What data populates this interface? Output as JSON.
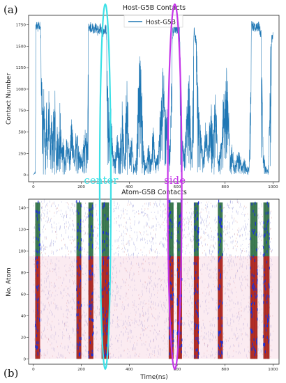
{
  "panel_labels": {
    "top": "(a)",
    "bottom": "(b)"
  },
  "annotations": {
    "center": {
      "label": "center",
      "color": "#3de0e6",
      "x_ns": 300
    },
    "side": {
      "label": "side",
      "color": "#c535e8",
      "x_ns": 590
    }
  },
  "chart_data": [
    {
      "type": "line",
      "title": "Host-G5B Contacts",
      "xlabel": "",
      "ylabel": "Contact Number",
      "xlim": [
        -20,
        1025
      ],
      "ylim": [
        -80,
        1860
      ],
      "xticks": [
        0,
        200,
        400,
        600,
        800,
        1000
      ],
      "yticks": [
        0,
        250,
        500,
        750,
        1000,
        1250,
        1500,
        1750
      ],
      "legend": "top-center",
      "series": [
        {
          "name": "Host-G5B",
          "color": "#1f77b4",
          "x": [
            0,
            8,
            10,
            15,
            20,
            25,
            30,
            40,
            45,
            50,
            55,
            60,
            65,
            70,
            75,
            80,
            90,
            95,
            100,
            105,
            110,
            120,
            125,
            130,
            140,
            150,
            160,
            170,
            180,
            190,
            200,
            210,
            220,
            225,
            230,
            235,
            240,
            250,
            260,
            270,
            280,
            290,
            300,
            305,
            310,
            315,
            320,
            325,
            330,
            340,
            350,
            360,
            370,
            380,
            390,
            400,
            410,
            420,
            430,
            440,
            450,
            460,
            470,
            480,
            490,
            500,
            510,
            520,
            530,
            540,
            550,
            560,
            570,
            580,
            590,
            600,
            610,
            620,
            630,
            640,
            650,
            660,
            670,
            680,
            690,
            700,
            710,
            720,
            730,
            740,
            750,
            760,
            770,
            780,
            790,
            800,
            810,
            820,
            830,
            840,
            850,
            860,
            870,
            880,
            890,
            900,
            910,
            920,
            930,
            940,
            950,
            960,
            970,
            980,
            990,
            995,
            1000
          ],
          "y": [
            0,
            50,
            1800,
            1790,
            1780,
            1800,
            1760,
            700,
            1200,
            400,
            900,
            500,
            1100,
            300,
            800,
            600,
            1000,
            200,
            700,
            400,
            900,
            300,
            600,
            200,
            500,
            300,
            700,
            250,
            600,
            350,
            200,
            500,
            600,
            400,
            1780,
            1750,
            1790,
            1760,
            1780,
            1730,
            1770,
            1720,
            1760,
            1740,
            1200,
            800,
            600,
            900,
            400,
            200,
            500,
            300,
            900,
            200,
            1400,
            300,
            500,
            100,
            250,
            1550,
            1200,
            300,
            100,
            400,
            200,
            600,
            150,
            300,
            800,
            1300,
            1200,
            700,
            300,
            1700,
            1780,
            1750,
            1800,
            500,
            300,
            800,
            1200,
            300,
            1750,
            1600,
            800,
            500,
            200,
            700,
            300,
            1000,
            400,
            1100,
            200,
            300,
            900,
            1100,
            1400,
            200,
            400,
            100,
            250,
            300,
            150,
            200,
            100,
            100,
            1800,
            1790,
            1780,
            1800,
            1700,
            300,
            100,
            50,
            1500,
            1650,
            1700
          ]
        }
      ]
    },
    {
      "type": "heatmap",
      "title": "Atom-G5B Contacts",
      "xlabel": "Time(ns)",
      "ylabel": "No. Atom",
      "xlim": [
        -20,
        1025
      ],
      "ylim": [
        -5,
        148
      ],
      "xticks": [
        0,
        200,
        400,
        600,
        800,
        1000
      ],
      "yticks": [
        0,
        20,
        40,
        60,
        80,
        100,
        120,
        140
      ],
      "dense_bands_ns": [
        [
          8,
          28
        ],
        [
          180,
          200
        ],
        [
          230,
          250
        ],
        [
          285,
          315
        ],
        [
          565,
          585
        ],
        [
          600,
          620
        ],
        [
          670,
          690
        ],
        [
          770,
          790
        ],
        [
          905,
          935
        ],
        [
          960,
          985
        ]
      ]
    }
  ]
}
